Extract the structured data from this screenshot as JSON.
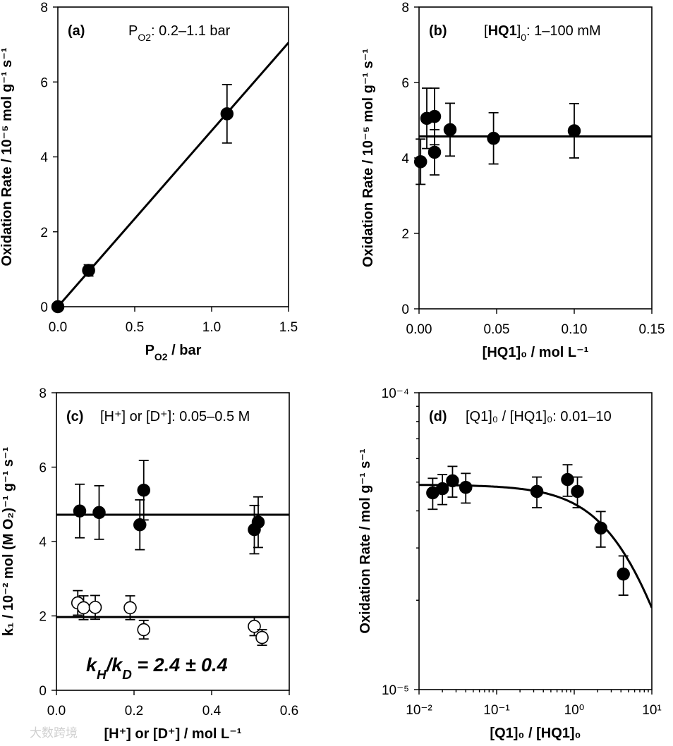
{
  "chart_data": [
    {
      "panel_tag": "(a)",
      "type": "scatter",
      "title_parts": {
        "pre": "P",
        "sub": "O2",
        "post": ": 0.2–1.1 bar"
      },
      "ylabel": "Oxidation Rate / 10⁻⁵ mol g⁻¹ s⁻¹",
      "xlabel_parts": {
        "pre": "P",
        "sub": "O2",
        "post": " / bar"
      },
      "xlim": [
        0,
        1.5
      ],
      "ylim": [
        0,
        8
      ],
      "xticks": [
        "0.0",
        "0.5",
        "1.0",
        "1.5"
      ],
      "yticks": [
        "0",
        "2",
        "4",
        "6",
        "8"
      ],
      "points": [
        {
          "x": 0.0,
          "y": 0.0,
          "err": 0.0
        },
        {
          "x": 0.2,
          "y": 0.97,
          "err": 0.15
        },
        {
          "x": 1.1,
          "y": 5.15,
          "err": 0.78
        }
      ],
      "fit": {
        "type": "line",
        "slope": 4.7,
        "intercept": 0.0
      }
    },
    {
      "panel_tag": "(b)",
      "type": "scatter",
      "title_parts": {
        "pre": "[",
        "bold": "HQ1",
        "post": "]",
        "sub": "0",
        "tail": ": 1–100 mM"
      },
      "ylabel": "Oxidation Rate / 10⁻⁵ mol g⁻¹ s⁻¹",
      "xlabel": "[HQ1]₀ / mol L⁻¹",
      "xlim": [
        0,
        0.15
      ],
      "ylim": [
        0,
        8
      ],
      "xticks": [
        "0.00",
        "0.05",
        "0.10",
        "0.15"
      ],
      "yticks": [
        "0",
        "2",
        "4",
        "6",
        "8"
      ],
      "points": [
        {
          "x": 0.001,
          "y": 3.9,
          "err": 0.6
        },
        {
          "x": 0.005,
          "y": 5.05,
          "err": 0.8
        },
        {
          "x": 0.01,
          "y": 5.1,
          "err": 0.75
        },
        {
          "x": 0.01,
          "y": 4.15,
          "err": 0.6
        },
        {
          "x": 0.02,
          "y": 4.75,
          "err": 0.7
        },
        {
          "x": 0.048,
          "y": 4.52,
          "err": 0.68
        },
        {
          "x": 0.1,
          "y": 4.72,
          "err": 0.72
        }
      ],
      "fit": {
        "type": "hline",
        "y": 4.57
      }
    },
    {
      "panel_tag": "(c)",
      "type": "scatter",
      "title": "[H⁺] or [D⁺]: 0.05–0.5 M",
      "ylabel": "k₁ / 10⁻² mol (M O₂)⁻¹ g⁻¹ s⁻¹",
      "xlabel": "[H⁺] or [D⁺] / mol L⁻¹",
      "xlim": [
        0,
        0.6
      ],
      "ylim": [
        0,
        8
      ],
      "xticks": [
        "0.0",
        "0.2",
        "0.4",
        "0.6"
      ],
      "yticks": [
        "0",
        "2",
        "4",
        "6",
        "8"
      ],
      "annotation": "kH/kD = 2.4 ± 0.4",
      "series": [
        {
          "name": "H+",
          "marker": "filled",
          "points": [
            {
              "x": 0.06,
              "y": 4.82,
              "err": 0.72
            },
            {
              "x": 0.11,
              "y": 4.78,
              "err": 0.72
            },
            {
              "x": 0.215,
              "y": 4.45,
              "err": 0.67
            },
            {
              "x": 0.225,
              "y": 5.38,
              "err": 0.8
            },
            {
              "x": 0.51,
              "y": 4.32,
              "err": 0.65
            },
            {
              "x": 0.52,
              "y": 4.52,
              "err": 0.68
            }
          ],
          "fit": {
            "type": "hline",
            "y": 4.72
          }
        },
        {
          "name": "D+",
          "marker": "open",
          "points": [
            {
              "x": 0.055,
              "y": 2.35,
              "err": 0.33
            },
            {
              "x": 0.07,
              "y": 2.22,
              "err": 0.32
            },
            {
              "x": 0.1,
              "y": 2.23,
              "err": 0.32
            },
            {
              "x": 0.19,
              "y": 2.22,
              "err": 0.32
            },
            {
              "x": 0.225,
              "y": 1.63,
              "err": 0.25
            },
            {
              "x": 0.51,
              "y": 1.72,
              "err": 0.25
            },
            {
              "x": 0.53,
              "y": 1.42,
              "err": 0.21
            }
          ],
          "fit": {
            "type": "hline",
            "y": 1.97
          }
        }
      ]
    },
    {
      "panel_tag": "(d)",
      "type": "scatter",
      "title": "[Q1]₀ / [HQ1]₀: 0.01–10",
      "ylabel": "Oxidation Rate / mol g⁻¹ s⁻¹",
      "xlabel": "[Q1]₀ / [HQ1]₀",
      "xscale": "log",
      "yscale": "log",
      "xlim": [
        0.01,
        10
      ],
      "ylim": [
        1e-05,
        0.0001
      ],
      "xticks": [
        "10⁻²",
        "10⁻¹",
        "10⁰",
        "10¹"
      ],
      "yticks": [
        "10⁻⁵",
        "10⁻⁴"
      ],
      "points": [
        {
          "x": 0.015,
          "y": 4.6e-05,
          "err": 5.5e-06
        },
        {
          "x": 0.02,
          "y": 4.75e-05,
          "err": 5.5e-06
        },
        {
          "x": 0.027,
          "y": 5.05e-05,
          "err": 6e-06
        },
        {
          "x": 0.04,
          "y": 4.8e-05,
          "err": 5.5e-06
        },
        {
          "x": 0.33,
          "y": 4.65e-05,
          "err": 5.5e-06
        },
        {
          "x": 0.82,
          "y": 5.1e-05,
          "err": 6.2e-06
        },
        {
          "x": 1.1,
          "y": 4.65e-05,
          "err": 5.5e-06
        },
        {
          "x": 2.2,
          "y": 3.5e-05,
          "err": 4.8e-06
        },
        {
          "x": 4.3,
          "y": 2.45e-05,
          "err": 3.7e-06
        }
      ],
      "fit": {
        "type": "curve",
        "a": 4.9e-05,
        "b": 0.16
      }
    }
  ],
  "watermark": "大数跨境"
}
